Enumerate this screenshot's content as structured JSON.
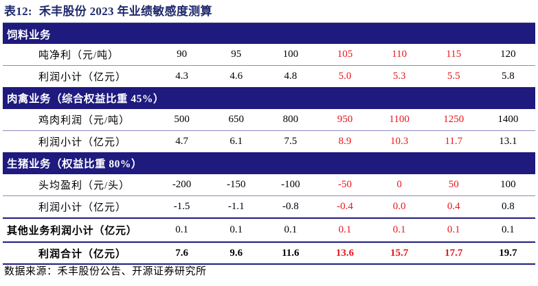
{
  "title": {
    "number": "表12:",
    "text": "禾丰股份 2023 年业绩敏感度测算"
  },
  "sections": [
    {
      "name": "饲料业务",
      "rows": [
        {
          "label": "吨净利（元/吨）",
          "values": [
            "90",
            "95",
            "100",
            "105",
            "110",
            "115",
            "120"
          ]
        },
        {
          "label": "利润小计（亿元）",
          "values": [
            "4.3",
            "4.6",
            "4.8",
            "5.0",
            "5.3",
            "5.5",
            "5.8"
          ]
        }
      ]
    },
    {
      "name": "肉禽业务（综合权益比重 45%）",
      "rows": [
        {
          "label": "鸡肉利润（元/吨）",
          "values": [
            "500",
            "650",
            "800",
            "950",
            "1100",
            "1250",
            "1400"
          ]
        },
        {
          "label": "利润小计（亿元）",
          "values": [
            "4.7",
            "6.1",
            "7.5",
            "8.9",
            "10.3",
            "11.7",
            "13.1"
          ]
        }
      ]
    },
    {
      "name": "生猪业务（权益比重 80%）",
      "rows": [
        {
          "label": "头均盈利（元/头）",
          "values": [
            "-200",
            "-150",
            "-100",
            "-50",
            "0",
            "50",
            "100"
          ]
        },
        {
          "label": "利润小计（亿元）",
          "values": [
            "-1.5",
            "-1.1",
            "-0.8",
            "-0.4",
            "0.0",
            "0.4",
            "0.8"
          ]
        }
      ]
    }
  ],
  "other": {
    "label": "其他业务利润小计（亿元）",
    "values": [
      "0.1",
      "0.1",
      "0.1",
      "0.1",
      "0.1",
      "0.1",
      "0.1"
    ]
  },
  "total": {
    "label": "利润合计（亿元）",
    "values": [
      "7.6",
      "9.6",
      "11.6",
      "13.6",
      "15.7",
      "17.7",
      "19.7"
    ]
  },
  "highlight_color": "#e8141c",
  "header_color": "#1e1a7e",
  "source": "数据来源：禾丰股份公告、开源证券研究所"
}
